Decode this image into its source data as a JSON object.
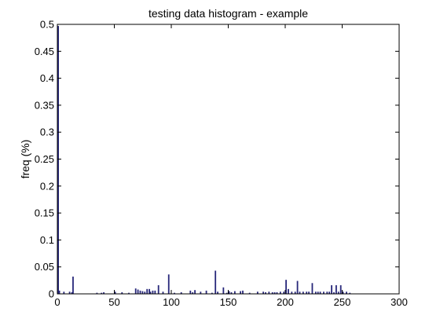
{
  "chart_data": {
    "type": "bar",
    "title": "testing data histogram - example",
    "xlabel": "",
    "ylabel": "freq (%)",
    "xlim": [
      0,
      300
    ],
    "ylim": [
      0,
      0.5
    ],
    "grid": false,
    "x_ticks": [
      0,
      50,
      100,
      150,
      200,
      250,
      300
    ],
    "x_tick_labels": [
      "0",
      "50",
      "100",
      "150",
      "200",
      "250",
      "300"
    ],
    "y_ticks": [
      0,
      0.05,
      0.1,
      0.15,
      0.2,
      0.25,
      0.3,
      0.35,
      0.4,
      0.45,
      0.5
    ],
    "y_tick_labels": [
      "0",
      "0.05",
      "0.1",
      "0.15",
      "0.2",
      "0.25",
      "0.3",
      "0.35",
      "0.4",
      "0.45",
      "0.5"
    ],
    "bar_color": "#27277a",
    "series": [
      {
        "x": [
          0,
          1,
          5,
          10,
          12,
          13,
          34,
          38,
          40,
          50,
          56,
          62,
          68,
          70,
          72,
          74,
          76,
          78,
          80,
          81,
          83,
          85,
          88,
          92,
          97,
          102,
          108,
          116,
          118,
          120,
          125,
          130,
          135,
          138,
          140,
          145,
          148,
          150,
          152,
          155,
          160,
          162,
          168,
          175,
          180,
          182,
          185,
          188,
          190,
          192,
          195,
          198,
          200,
          202,
          205,
          208,
          210,
          212,
          215,
          218,
          220,
          223,
          226,
          228,
          230,
          233,
          236,
          238,
          240,
          242,
          244,
          246,
          248,
          250,
          253,
          256
        ],
        "values": [
          0.497,
          0.006,
          0.004,
          0.004,
          0.003,
          0.032,
          0.002,
          0.002,
          0.003,
          0.004,
          0.003,
          0.002,
          0.01,
          0.008,
          0.006,
          0.005,
          0.004,
          0.009,
          0.009,
          0.004,
          0.006,
          0.006,
          0.016,
          0.004,
          0.036,
          0.002,
          0.003,
          0.006,
          0.003,
          0.007,
          0.004,
          0.006,
          0.002,
          0.043,
          0.004,
          0.012,
          0.002,
          0.005,
          0.003,
          0.005,
          0.005,
          0.006,
          0.002,
          0.004,
          0.004,
          0.003,
          0.004,
          0.003,
          0.003,
          0.003,
          0.004,
          0.004,
          0.026,
          0.009,
          0.004,
          0.004,
          0.024,
          0.004,
          0.004,
          0.004,
          0.004,
          0.02,
          0.004,
          0.004,
          0.004,
          0.004,
          0.004,
          0.004,
          0.016,
          0.003,
          0.016,
          0.004,
          0.016,
          0.004,
          0.004,
          0.002
        ]
      }
    ]
  }
}
